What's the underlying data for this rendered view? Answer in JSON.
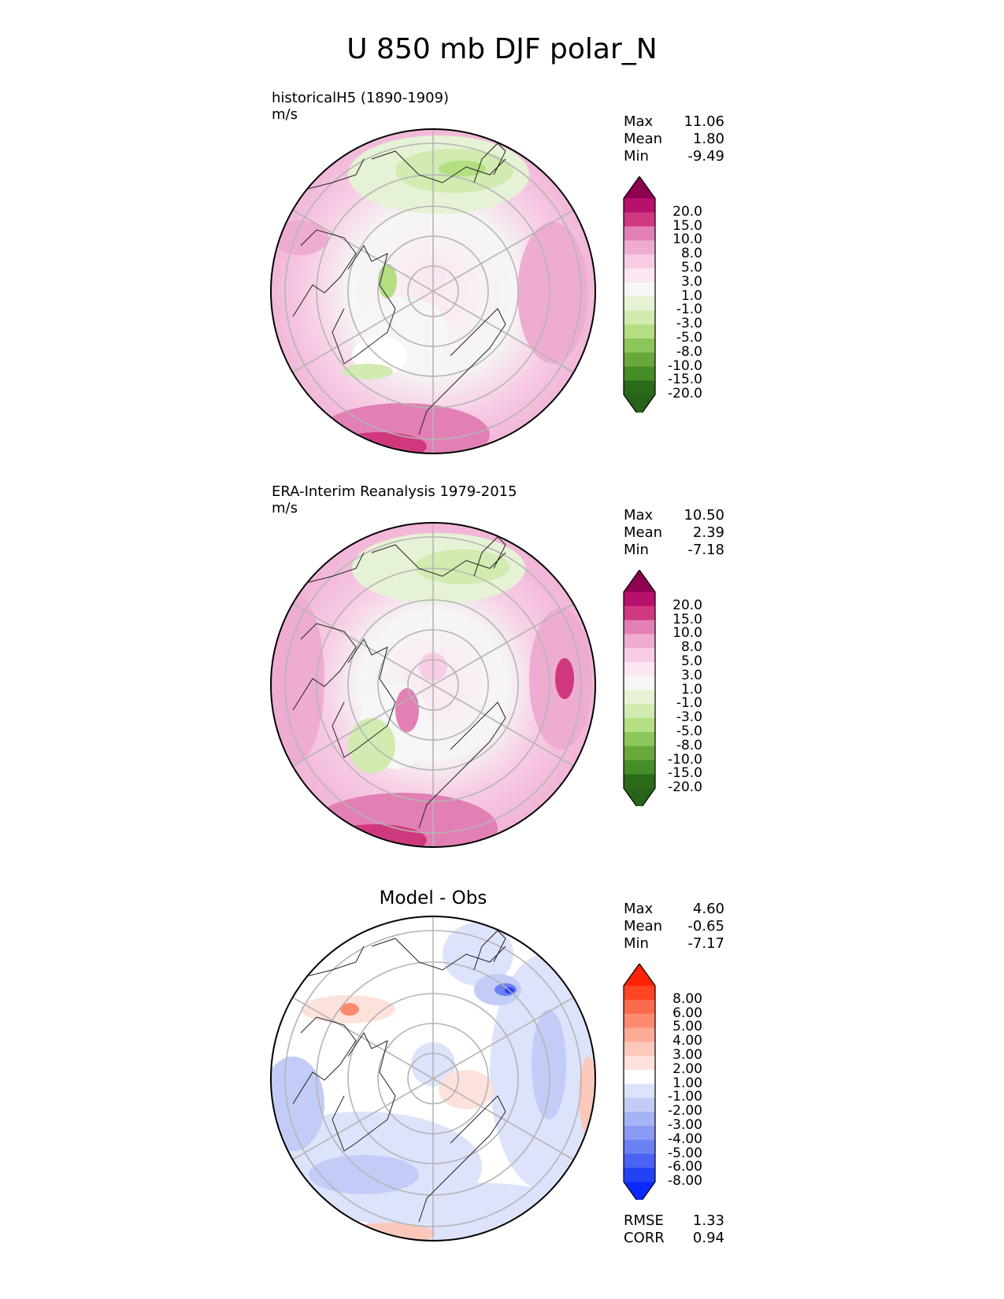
{
  "title": "U 850 mb DJF polar_N",
  "panels": [
    {
      "label_line1": "historicalH5 (1890-1909)",
      "label_line2": "m/s",
      "stats": [
        {
          "name": "Max",
          "value": "11.06"
        },
        {
          "name": "Mean",
          "value": "1.80"
        },
        {
          "name": "Min",
          "value": "-9.49"
        }
      ]
    },
    {
      "label_line1": "ERA-Interim Reanalysis 1979-2015",
      "label_line2": "m/s",
      "stats": [
        {
          "name": "Max",
          "value": "10.50"
        },
        {
          "name": "Mean",
          "value": "2.39"
        },
        {
          "name": "Min",
          "value": "-7.18"
        }
      ]
    },
    {
      "title": "Model - Obs",
      "stats": [
        {
          "name": "Max",
          "value": "4.60"
        },
        {
          "name": "Mean",
          "value": "-0.65"
        },
        {
          "name": "Min",
          "value": "-7.17"
        }
      ],
      "extra_stats": [
        {
          "name": "RMSE",
          "value": "1.33"
        },
        {
          "name": "CORR",
          "value": "0.94"
        }
      ]
    }
  ],
  "colorbars": {
    "wind": {
      "ticks": [
        "20.0",
        "15.0",
        "10.0",
        "8.0",
        "5.0",
        "3.0",
        "1.0",
        "-1.0",
        "-3.0",
        "-5.0",
        "-8.0",
        "-10.0",
        "-15.0",
        "-20.0"
      ],
      "colors": [
        "#8e0152",
        "#b8106d",
        "#d0387d",
        "#e27fb5",
        "#efacd2",
        "#f7cde5",
        "#fbe7f1",
        "#f6f6f6",
        "#e6f2d5",
        "#d1ebb0",
        "#b3df82",
        "#8cc55a",
        "#68a83a",
        "#478d27",
        "#2a6a1a",
        "#276419"
      ]
    },
    "diff": {
      "ticks": [
        "8.00",
        "6.00",
        "5.00",
        "4.00",
        "3.00",
        "2.00",
        "1.00",
        "-1.00",
        "-2.00",
        "-3.00",
        "-4.00",
        "-5.00",
        "-6.00",
        "-8.00"
      ],
      "colors": [
        "#ff2200",
        "#ff4422",
        "#fa6a4c",
        "#fc8a6e",
        "#fbaa96",
        "#fcc8bc",
        "#fde2db",
        "#ffffff",
        "#dde3fa",
        "#c2ccf7",
        "#a6b4f5",
        "#8a9bf3",
        "#6b80f2",
        "#4a63f2",
        "#2442f5",
        "#0a2aff"
      ]
    }
  },
  "chart_data": [
    {
      "type": "heatmap",
      "title": "historicalH5 (1890-1909)",
      "units": "m/s",
      "projection": "north polar stereographic",
      "region": "polar_N",
      "stats": {
        "max": 11.06,
        "mean": 1.8,
        "min": -9.49
      },
      "levels": [
        -20,
        -15,
        -10,
        -8,
        -5,
        -3,
        -1,
        1,
        3,
        5,
        8,
        10,
        15,
        20
      ]
    },
    {
      "type": "heatmap",
      "title": "ERA-Interim Reanalysis 1979-2015",
      "units": "m/s",
      "projection": "north polar stereographic",
      "region": "polar_N",
      "stats": {
        "max": 10.5,
        "mean": 2.39,
        "min": -7.18
      },
      "levels": [
        -20,
        -15,
        -10,
        -8,
        -5,
        -3,
        -1,
        1,
        3,
        5,
        8,
        10,
        15,
        20
      ]
    },
    {
      "type": "heatmap",
      "title": "Model - Obs",
      "projection": "north polar stereographic",
      "region": "polar_N",
      "stats": {
        "max": 4.6,
        "mean": -0.65,
        "min": -7.17,
        "rmse": 1.33,
        "corr": 0.94
      },
      "levels": [
        -8,
        -6,
        -5,
        -4,
        -3,
        -2,
        -1,
        1,
        2,
        3,
        4,
        5,
        6,
        8
      ]
    }
  ]
}
